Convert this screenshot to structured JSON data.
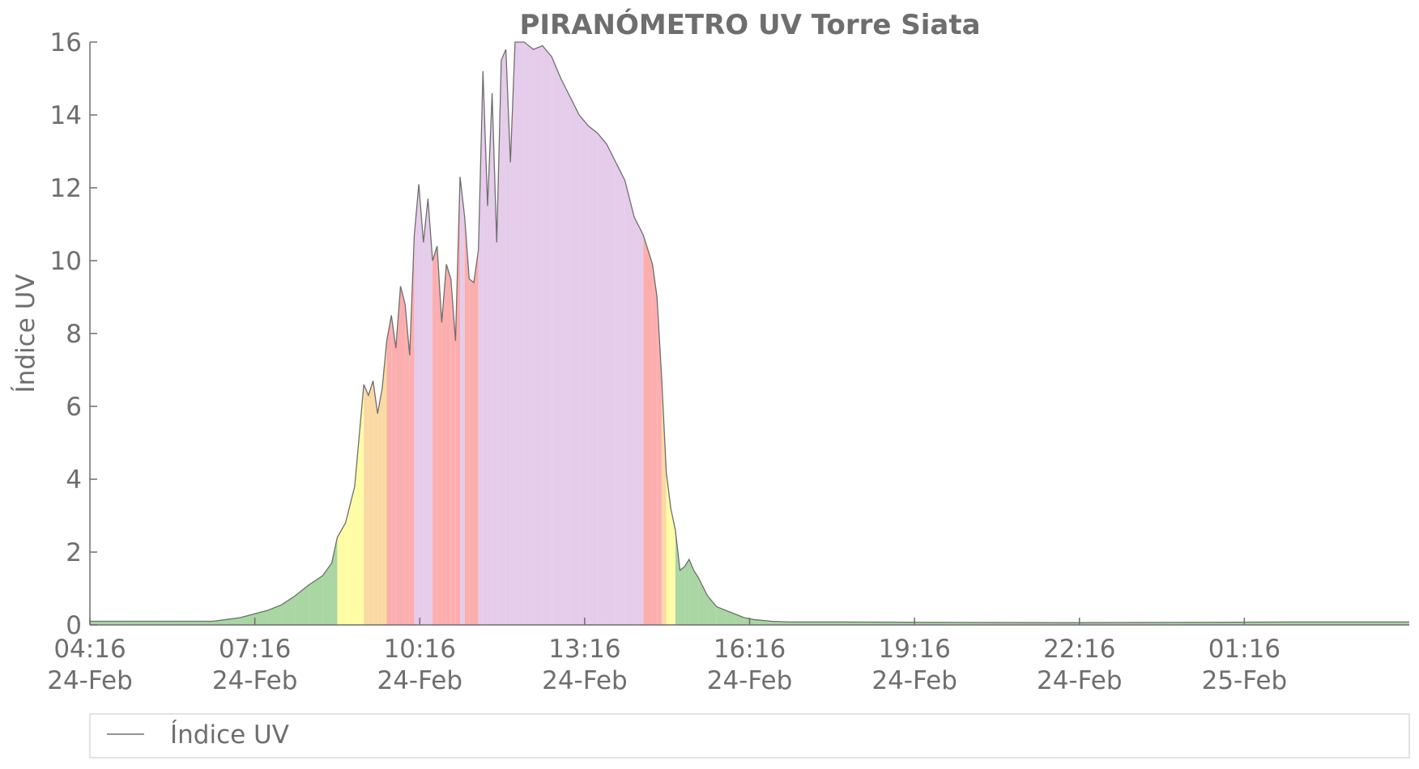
{
  "chart_data": {
    "type": "area",
    "title": "PIRANÓMETRO UV Torre Siata",
    "xlabel": "",
    "ylabel": "Índice UV",
    "xlim": [
      "2024-02-24T04:16",
      "2024-02-25T04:16"
    ],
    "ylim": [
      0,
      16
    ],
    "y_ticks": [
      0,
      2,
      4,
      6,
      8,
      10,
      12,
      14,
      16
    ],
    "x_ticks": [
      {
        "time": "2024-02-24T04:16",
        "label_time": "04:16",
        "label_date": "24-Feb"
      },
      {
        "time": "2024-02-24T07:16",
        "label_time": "07:16",
        "label_date": "24-Feb"
      },
      {
        "time": "2024-02-24T10:16",
        "label_time": "10:16",
        "label_date": "24-Feb"
      },
      {
        "time": "2024-02-24T13:16",
        "label_time": "13:16",
        "label_date": "24-Feb"
      },
      {
        "time": "2024-02-24T16:16",
        "label_time": "16:16",
        "label_date": "24-Feb"
      },
      {
        "time": "2024-02-24T19:16",
        "label_time": "19:16",
        "label_date": "24-Feb"
      },
      {
        "time": "2024-02-24T22:16",
        "label_time": "22:16",
        "label_date": "24-Feb"
      },
      {
        "time": "2024-02-25T01:16",
        "label_time": "01:16",
        "label_date": "25-Feb"
      }
    ],
    "grid": false,
    "legend": {
      "position": "bottom",
      "entries": [
        "Índice UV"
      ]
    },
    "line_color": "#6e6e6e",
    "uv_categories": [
      {
        "min": 0,
        "max": 2.5,
        "color": "#a9d6a3"
      },
      {
        "min": 2.5,
        "max": 5.5,
        "color": "#fffca6"
      },
      {
        "min": 5.5,
        "max": 7.5,
        "color": "#fbd9a3"
      },
      {
        "min": 7.5,
        "max": 10.5,
        "color": "#fcaeae"
      },
      {
        "min": 10.5,
        "max": 16,
        "color": "#e5ccea"
      }
    ],
    "series": [
      {
        "name": "Índice UV",
        "x": [
          "2024-02-24T04:16",
          "2024-02-24T05:00",
          "2024-02-24T05:30",
          "2024-02-24T06:00",
          "2024-02-24T06:30",
          "2024-02-24T06:45",
          "2024-02-24T07:00",
          "2024-02-24T07:15",
          "2024-02-24T07:30",
          "2024-02-24T07:45",
          "2024-02-24T08:00",
          "2024-02-24T08:15",
          "2024-02-24T08:30",
          "2024-02-24T08:40",
          "2024-02-24T08:46",
          "2024-02-24T08:55",
          "2024-02-24T09:05",
          "2024-02-24T09:15",
          "2024-02-24T09:20",
          "2024-02-24T09:25",
          "2024-02-24T09:30",
          "2024-02-24T09:35",
          "2024-02-24T09:40",
          "2024-02-24T09:45",
          "2024-02-24T09:50",
          "2024-02-24T09:55",
          "2024-02-24T10:00",
          "2024-02-24T10:05",
          "2024-02-24T10:10",
          "2024-02-24T10:15",
          "2024-02-24T10:20",
          "2024-02-24T10:25",
          "2024-02-24T10:30",
          "2024-02-24T10:35",
          "2024-02-24T10:40",
          "2024-02-24T10:45",
          "2024-02-24T10:50",
          "2024-02-24T10:55",
          "2024-02-24T11:00",
          "2024-02-24T11:05",
          "2024-02-24T11:10",
          "2024-02-24T11:15",
          "2024-02-24T11:20",
          "2024-02-24T11:25",
          "2024-02-24T11:30",
          "2024-02-24T11:35",
          "2024-02-24T11:40",
          "2024-02-24T11:45",
          "2024-02-24T11:50",
          "2024-02-24T11:55",
          "2024-02-24T12:00",
          "2024-02-24T12:10",
          "2024-02-24T12:20",
          "2024-02-24T12:30",
          "2024-02-24T12:40",
          "2024-02-24T12:50",
          "2024-02-24T13:00",
          "2024-02-24T13:10",
          "2024-02-24T13:20",
          "2024-02-24T13:30",
          "2024-02-24T13:40",
          "2024-02-24T13:50",
          "2024-02-24T14:00",
          "2024-02-24T14:10",
          "2024-02-24T14:20",
          "2024-02-24T14:30",
          "2024-02-24T14:35",
          "2024-02-24T14:40",
          "2024-02-24T14:45",
          "2024-02-24T14:50",
          "2024-02-24T14:55",
          "2024-02-24T15:00",
          "2024-02-24T15:05",
          "2024-02-24T15:10",
          "2024-02-24T15:15",
          "2024-02-24T15:20",
          "2024-02-24T15:30",
          "2024-02-24T15:40",
          "2024-02-24T15:50",
          "2024-02-24T16:00",
          "2024-02-24T16:10",
          "2024-02-24T16:20",
          "2024-02-24T16:40",
          "2024-02-24T17:00",
          "2024-02-24T18:00",
          "2024-02-24T20:00",
          "2024-02-24T22:00",
          "2024-02-25T00:00",
          "2024-02-25T02:00",
          "2024-02-25T04:16"
        ],
        "y": [
          0.1,
          0.1,
          0.1,
          0.1,
          0.1,
          0.15,
          0.2,
          0.3,
          0.4,
          0.55,
          0.8,
          1.1,
          1.35,
          1.7,
          2.4,
          2.8,
          3.8,
          6.6,
          6.3,
          6.7,
          5.8,
          6.5,
          7.8,
          8.5,
          7.6,
          9.3,
          8.8,
          7.4,
          10.7,
          12.1,
          10.5,
          11.7,
          10.0,
          10.4,
          8.3,
          9.9,
          9.5,
          7.8,
          12.3,
          11.2,
          9.5,
          9.4,
          10.3,
          15.2,
          11.5,
          14.6,
          10.5,
          15.5,
          15.8,
          12.7,
          16.2,
          16.0,
          15.8,
          15.9,
          15.6,
          15.0,
          14.5,
          14.0,
          13.7,
          13.5,
          13.2,
          12.7,
          12.2,
          11.2,
          10.7,
          9.9,
          9.0,
          6.8,
          4.2,
          3.2,
          2.6,
          1.5,
          1.6,
          1.8,
          1.5,
          1.3,
          0.8,
          0.5,
          0.4,
          0.3,
          0.2,
          0.15,
          0.1,
          0.08,
          0.08,
          0.07,
          0.06,
          0.07,
          0.08,
          0.08
        ]
      }
    ]
  }
}
